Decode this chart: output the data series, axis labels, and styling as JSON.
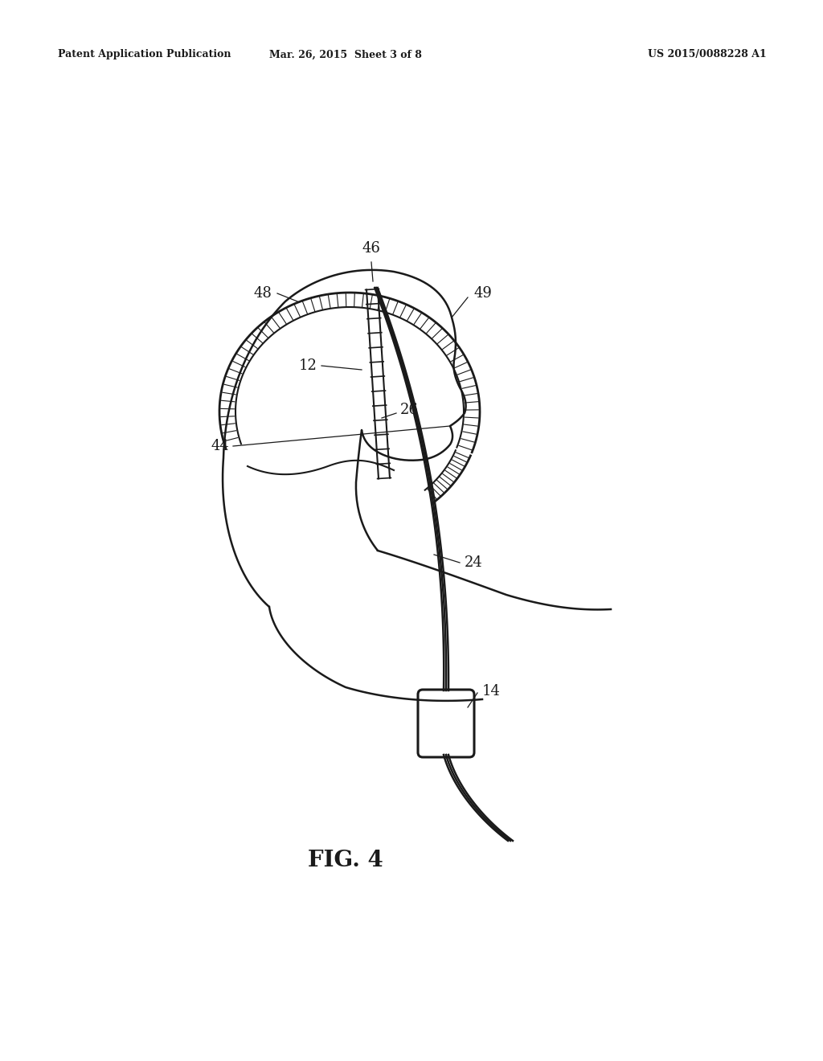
{
  "bg_color": "#ffffff",
  "line_color": "#1a1a1a",
  "header_left": "Patent Application Publication",
  "header_mid": "Mar. 26, 2015  Sheet 3 of 8",
  "header_right": "US 2015/0088228 A1",
  "fig_label": "FIG. 4"
}
